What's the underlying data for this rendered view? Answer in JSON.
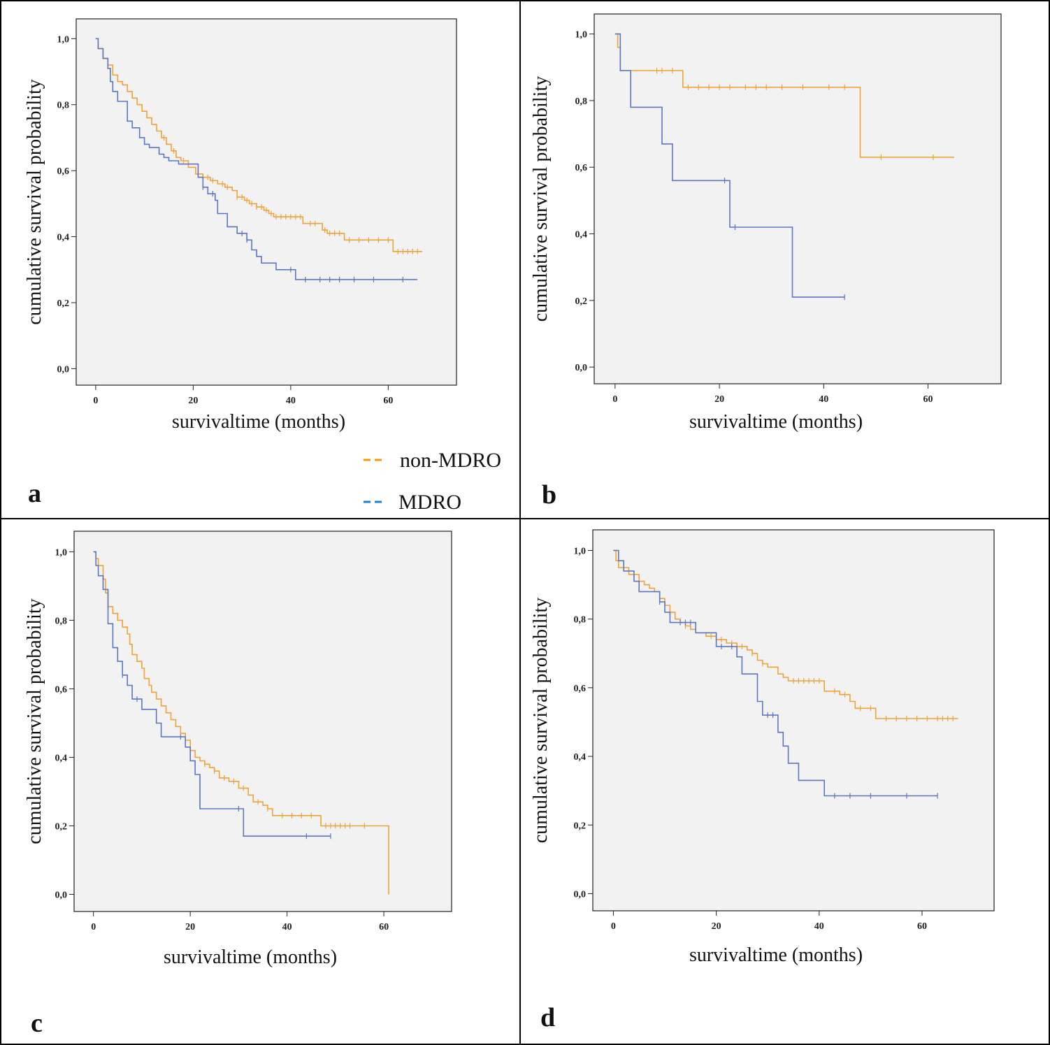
{
  "figure": {
    "colors": {
      "non_mdro": "#f0a23a",
      "mdro": "#5d76c4",
      "legend_non_mdro": "#f39c12",
      "legend_mdro": "#1f7fd0",
      "plot_background": "#f2f2f2",
      "frame": "#000000"
    },
    "legend": [
      {
        "label": "non-MDRO",
        "series": "non_mdro"
      },
      {
        "label": "MDRO",
        "series": "mdro"
      }
    ]
  },
  "chart_data": [
    {
      "panel": "a",
      "type": "line",
      "step": true,
      "xlabel": "survivaltime (months)",
      "ylabel": "cumulative survival probability",
      "xlim": [
        -4,
        74
      ],
      "ylim": [
        -0.05,
        1.06
      ],
      "xticks": [
        0,
        20,
        40,
        60
      ],
      "xtick_labels": [
        "0",
        "20",
        "40",
        "60"
      ],
      "yticks": [
        0.0,
        0.2,
        0.4,
        0.6,
        0.8,
        1.0
      ],
      "ytick_labels": [
        "0,0",
        "0,2",
        "0,4",
        "0,6",
        "0,8",
        "1,0"
      ],
      "series": [
        {
          "name": "non-MDRO",
          "steps": [
            [
              0,
              1.0
            ],
            [
              0.5,
              0.97
            ],
            [
              1.5,
              0.94
            ],
            [
              2.5,
              0.92
            ],
            [
              3.5,
              0.89
            ],
            [
              4.5,
              0.87
            ],
            [
              5.5,
              0.86
            ],
            [
              6.5,
              0.84
            ],
            [
              7.5,
              0.82
            ],
            [
              8.5,
              0.8
            ],
            [
              9.5,
              0.78
            ],
            [
              10.5,
              0.76
            ],
            [
              11.5,
              0.74
            ],
            [
              12.5,
              0.72
            ],
            [
              13.5,
              0.7
            ],
            [
              14.5,
              0.68
            ],
            [
              15.5,
              0.66
            ],
            [
              16.5,
              0.64
            ],
            [
              17.5,
              0.63
            ],
            [
              19,
              0.61
            ],
            [
              20.5,
              0.59
            ],
            [
              22,
              0.58
            ],
            [
              23.5,
              0.57
            ],
            [
              25,
              0.56
            ],
            [
              26.5,
              0.55
            ],
            [
              28,
              0.54
            ],
            [
              29,
              0.52
            ],
            [
              30.5,
              0.51
            ],
            [
              31.5,
              0.5
            ],
            [
              33,
              0.49
            ],
            [
              34.5,
              0.48
            ],
            [
              35.5,
              0.47
            ],
            [
              36.5,
              0.46
            ],
            [
              42.5,
              0.44
            ],
            [
              46.5,
              0.42
            ],
            [
              47.5,
              0.41
            ],
            [
              51,
              0.39
            ],
            [
              61,
              0.355
            ],
            [
              67,
              0.355
            ]
          ],
          "censor_x": [
            14,
            16,
            18,
            21,
            23,
            24,
            26,
            27,
            29,
            30,
            31,
            32,
            33,
            34,
            35,
            36,
            37,
            38,
            39,
            40,
            41,
            42,
            44,
            45,
            47,
            48,
            49,
            50,
            52,
            54,
            56,
            58,
            60,
            62,
            63,
            64,
            65,
            66
          ]
        },
        {
          "name": "MDRO",
          "steps": [
            [
              0,
              1.0
            ],
            [
              0.5,
              0.97
            ],
            [
              1.5,
              0.94
            ],
            [
              2.5,
              0.91
            ],
            [
              3,
              0.87
            ],
            [
              3.5,
              0.84
            ],
            [
              4.5,
              0.81
            ],
            [
              6.5,
              0.75
            ],
            [
              7.5,
              0.73
            ],
            [
              9,
              0.7
            ],
            [
              10,
              0.68
            ],
            [
              11,
              0.67
            ],
            [
              13,
              0.65
            ],
            [
              14,
              0.64
            ],
            [
              15,
              0.63
            ],
            [
              17,
              0.62
            ],
            [
              21,
              0.58
            ],
            [
              22,
              0.55
            ],
            [
              23,
              0.53
            ],
            [
              24.5,
              0.51
            ],
            [
              25,
              0.47
            ],
            [
              27,
              0.43
            ],
            [
              29,
              0.41
            ],
            [
              31,
              0.39
            ],
            [
              32,
              0.36
            ],
            [
              33,
              0.34
            ],
            [
              34,
              0.32
            ],
            [
              37,
              0.3
            ],
            [
              41,
              0.27
            ],
            [
              66,
              0.27
            ]
          ],
          "censor_x": [
            22,
            24,
            30,
            31,
            40,
            43,
            46,
            48,
            50,
            53,
            57,
            63
          ]
        }
      ]
    },
    {
      "panel": "b",
      "type": "line",
      "step": true,
      "xlabel": "survivaltime (months)",
      "ylabel": "cumulative survival probability",
      "xlim": [
        -4,
        74
      ],
      "ylim": [
        -0.05,
        1.06
      ],
      "xticks": [
        0,
        20,
        40,
        60
      ],
      "xtick_labels": [
        "0",
        "20",
        "40",
        "60"
      ],
      "yticks": [
        0.0,
        0.2,
        0.4,
        0.6,
        0.8,
        1.0
      ],
      "ytick_labels": [
        "0,0",
        "0,2",
        "0,4",
        "0,6",
        "0,8",
        "1,0"
      ],
      "series": [
        {
          "name": "non-MDRO",
          "steps": [
            [
              0,
              1.0
            ],
            [
              0.5,
              0.96
            ],
            [
              1,
              0.89
            ],
            [
              13,
              0.84
            ],
            [
              47,
              0.63
            ],
            [
              65,
              0.63
            ]
          ],
          "censor_x": [
            8,
            9,
            11,
            14,
            16,
            18,
            20,
            22,
            25,
            27,
            29,
            32,
            36,
            41,
            44,
            51,
            61
          ]
        },
        {
          "name": "MDRO",
          "steps": [
            [
              0,
              1.0
            ],
            [
              0.5,
              1.0
            ],
            [
              1,
              0.89
            ],
            [
              3,
              0.78
            ],
            [
              9,
              0.67
            ],
            [
              11,
              0.56
            ],
            [
              22,
              0.42
            ],
            [
              34,
              0.21
            ],
            [
              44,
              0.21
            ]
          ],
          "censor_x": [
            21,
            23,
            44
          ]
        }
      ]
    },
    {
      "panel": "c",
      "type": "line",
      "step": true,
      "xlabel": "survivaltime (months)",
      "ylabel": "cumulative survival probability",
      "xlim": [
        -4,
        74
      ],
      "ylim": [
        -0.05,
        1.06
      ],
      "xticks": [
        0,
        20,
        40,
        60
      ],
      "xtick_labels": [
        "0",
        "20",
        "40",
        "60"
      ],
      "yticks": [
        0.0,
        0.2,
        0.4,
        0.6,
        0.8,
        1.0
      ],
      "ytick_labels": [
        "0,0",
        "0,2",
        "0,4",
        "0,6",
        "0,8",
        "1,0"
      ],
      "series": [
        {
          "name": "non-MDRO",
          "steps": [
            [
              0,
              1.0
            ],
            [
              0.5,
              0.98
            ],
            [
              1,
              0.96
            ],
            [
              2,
              0.92
            ],
            [
              2.5,
              0.88
            ],
            [
              3,
              0.84
            ],
            [
              4,
              0.82
            ],
            [
              5,
              0.8
            ],
            [
              6,
              0.78
            ],
            [
              7,
              0.76
            ],
            [
              7.5,
              0.73
            ],
            [
              8,
              0.7
            ],
            [
              9,
              0.68
            ],
            [
              10,
              0.66
            ],
            [
              10.5,
              0.63
            ],
            [
              11.5,
              0.61
            ],
            [
              12,
              0.59
            ],
            [
              13,
              0.57
            ],
            [
              14,
              0.55
            ],
            [
              15,
              0.53
            ],
            [
              16,
              0.51
            ],
            [
              17,
              0.49
            ],
            [
              18,
              0.47
            ],
            [
              19,
              0.45
            ],
            [
              20,
              0.42
            ],
            [
              21,
              0.4
            ],
            [
              22,
              0.39
            ],
            [
              23,
              0.38
            ],
            [
              24,
              0.37
            ],
            [
              25,
              0.36
            ],
            [
              26,
              0.34
            ],
            [
              28,
              0.33
            ],
            [
              30,
              0.31
            ],
            [
              32,
              0.29
            ],
            [
              33,
              0.27
            ],
            [
              35,
              0.26
            ],
            [
              36,
              0.25
            ],
            [
              37,
              0.23
            ],
            [
              47,
              0.2
            ],
            [
              61,
              0.0
            ]
          ],
          "censor_x": [
            23,
            25,
            27,
            29,
            31,
            34,
            36,
            39,
            41,
            43,
            45,
            48,
            49,
            50,
            51,
            52,
            53,
            56
          ]
        },
        {
          "name": "MDRO",
          "steps": [
            [
              0,
              1.0
            ],
            [
              0.5,
              0.96
            ],
            [
              1,
              0.93
            ],
            [
              2,
              0.89
            ],
            [
              3,
              0.79
            ],
            [
              4,
              0.72
            ],
            [
              5,
              0.68
            ],
            [
              6,
              0.64
            ],
            [
              7,
              0.61
            ],
            [
              8,
              0.57
            ],
            [
              10,
              0.54
            ],
            [
              13,
              0.5
            ],
            [
              14,
              0.46
            ],
            [
              19,
              0.43
            ],
            [
              20,
              0.39
            ],
            [
              21,
              0.35
            ],
            [
              22,
              0.25
            ],
            [
              30,
              0.25
            ],
            [
              31,
              0.17
            ],
            [
              49,
              0.17
            ]
          ],
          "censor_x": [
            6,
            9,
            18,
            30,
            44,
            49
          ]
        }
      ]
    },
    {
      "panel": "d",
      "type": "line",
      "step": true,
      "xlabel": "survivaltime (months)",
      "ylabel": "cumulative survival probability",
      "xlim": [
        -4,
        74
      ],
      "ylim": [
        -0.05,
        1.06
      ],
      "xticks": [
        0,
        20,
        40,
        60
      ],
      "xtick_labels": [
        "0",
        "20",
        "40",
        "60"
      ],
      "yticks": [
        0.0,
        0.2,
        0.4,
        0.6,
        0.8,
        1.0
      ],
      "ytick_labels": [
        "0,0",
        "0,2",
        "0,4",
        "0,6",
        "0,8",
        "1,0"
      ],
      "series": [
        {
          "name": "non-MDRO",
          "steps": [
            [
              0,
              1.0
            ],
            [
              0.5,
              0.97
            ],
            [
              1,
              0.95
            ],
            [
              3,
              0.93
            ],
            [
              5,
              0.91
            ],
            [
              6,
              0.9
            ],
            [
              7,
              0.89
            ],
            [
              8,
              0.88
            ],
            [
              9,
              0.86
            ],
            [
              10,
              0.84
            ],
            [
              11,
              0.82
            ],
            [
              12,
              0.8
            ],
            [
              13,
              0.79
            ],
            [
              14,
              0.78
            ],
            [
              15,
              0.77
            ],
            [
              16,
              0.76
            ],
            [
              18,
              0.75
            ],
            [
              20,
              0.74
            ],
            [
              22,
              0.73
            ],
            [
              24,
              0.72
            ],
            [
              26,
              0.71
            ],
            [
              27,
              0.7
            ],
            [
              28,
              0.68
            ],
            [
              29,
              0.67
            ],
            [
              30,
              0.66
            ],
            [
              32,
              0.64
            ],
            [
              33,
              0.63
            ],
            [
              34,
              0.62
            ],
            [
              41,
              0.59
            ],
            [
              44,
              0.58
            ],
            [
              46,
              0.56
            ],
            [
              47,
              0.54
            ],
            [
              51,
              0.51
            ],
            [
              67,
              0.51
            ]
          ],
          "censor_x": [
            14,
            19,
            21,
            23,
            25,
            27,
            29,
            35,
            36,
            37,
            38,
            39,
            40,
            43,
            45,
            48,
            50,
            53,
            55,
            57,
            59,
            61,
            63,
            64,
            65,
            66
          ]
        },
        {
          "name": "MDRO",
          "steps": [
            [
              0,
              1.0
            ],
            [
              1,
              0.97
            ],
            [
              2,
              0.94
            ],
            [
              4,
              0.91
            ],
            [
              5,
              0.88
            ],
            [
              9,
              0.85
            ],
            [
              10,
              0.82
            ],
            [
              11,
              0.79
            ],
            [
              16,
              0.76
            ],
            [
              20,
              0.72
            ],
            [
              24,
              0.69
            ],
            [
              25,
              0.64
            ],
            [
              28,
              0.56
            ],
            [
              29,
              0.52
            ],
            [
              32,
              0.47
            ],
            [
              33,
              0.43
            ],
            [
              34,
              0.38
            ],
            [
              36,
              0.33
            ],
            [
              41,
              0.285
            ],
            [
              63,
              0.285
            ]
          ],
          "censor_x": [
            9,
            13,
            14,
            15,
            21,
            23,
            30,
            31,
            43,
            46,
            50,
            57,
            63
          ]
        }
      ]
    }
  ]
}
